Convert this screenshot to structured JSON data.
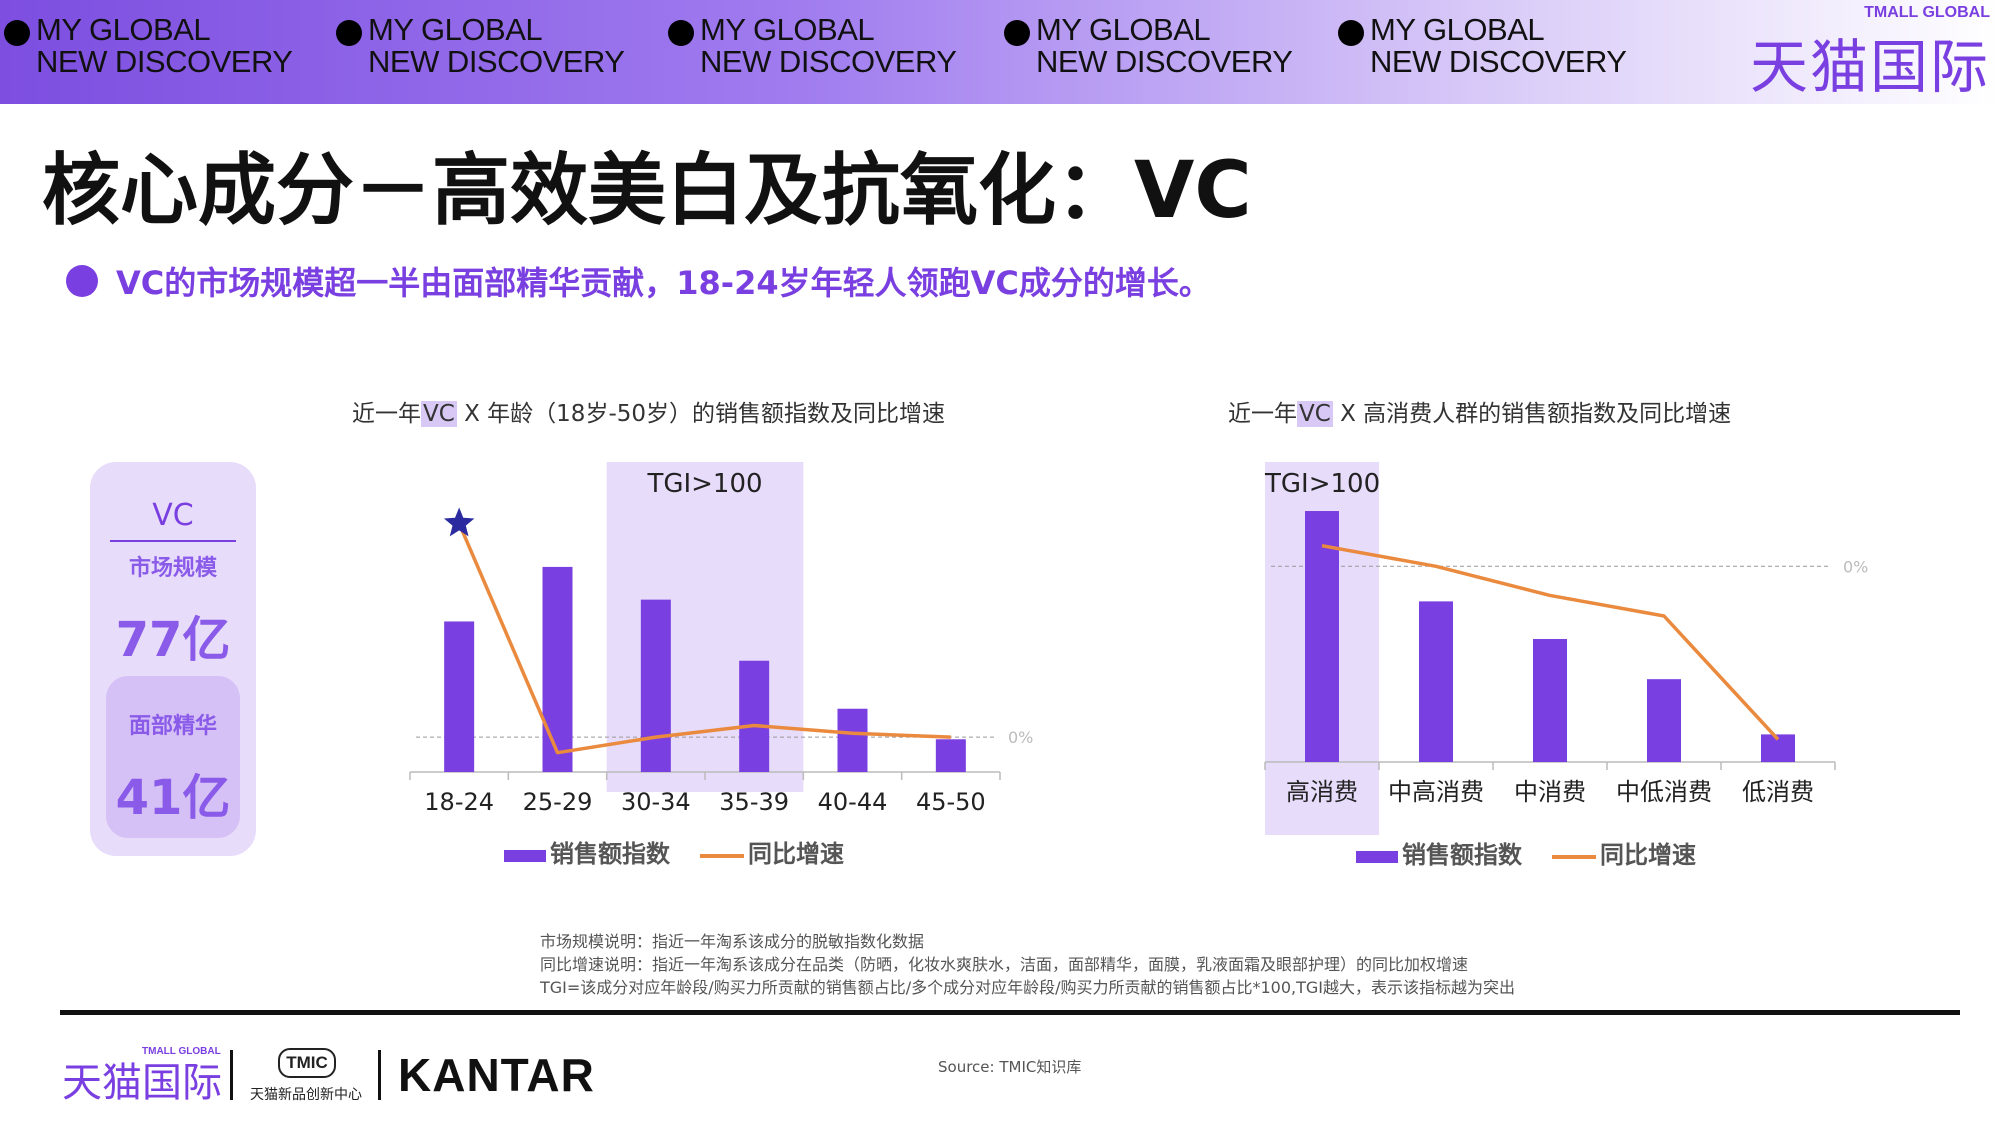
{
  "banner": {
    "items": [
      {
        "line1": "MY GLOBAL",
        "line2": "NEW DISCOVERY"
      },
      {
        "line1": "MY GLOBAL",
        "line2": "NEW DISCOVERY"
      },
      {
        "line1": "MY GLOBAL",
        "line2": "NEW DISCOVERY"
      },
      {
        "line1": "MY GLOBAL",
        "line2": "NEW DISCOVERY"
      },
      {
        "line1": "MY GLOBAL",
        "line2": "NEW DISCOVERY"
      }
    ],
    "brand_small": "TMALL GLOBAL",
    "brand_big": "天猫国际"
  },
  "page_title": "核心成分－高效美白及抗氧化：VC",
  "subtitle": "VC的市场规模超一半由面部精华贡献，18-24岁年轻人领跑VC成分的增长。",
  "card": {
    "title": "VC",
    "label1": "市场规模",
    "value1": "77亿",
    "label2": "面部精华",
    "value2": "41亿"
  },
  "chart1_title": {
    "pre": "近一年",
    "hl": "VC",
    "post": " X 年龄（18岁-50岁）的销售额指数及同比增速"
  },
  "chart2_title": {
    "pre": "近一年",
    "hl": "VC",
    "post": " X 高消费人群的销售额指数及同比增速"
  },
  "chart_data": [
    {
      "type": "bar",
      "categories": [
        "18-24",
        "25-29",
        "30-34",
        "35-39",
        "40-44",
        "45-50"
      ],
      "series": [
        {
          "name": "销售额指数",
          "values": [
            69,
            94,
            79,
            51,
            29,
            15
          ]
        },
        {
          "name": "同比增速",
          "values": [
            110,
            -8,
            0,
            6,
            2,
            0
          ]
        }
      ],
      "bar_ylim": [
        0,
        110
      ],
      "line_ylim": [
        -20,
        120
      ],
      "zero_label": "0%",
      "highlight": {
        "label": "TGI>100",
        "categories": [
          "30-34",
          "35-39"
        ]
      },
      "star_category": "18-24",
      "legend": [
        "销售额指数",
        "同比增速"
      ],
      "bar_color": "#7a3fe0",
      "line_color": "#ea8a3e",
      "highlight_color": "#e8dcfb"
    },
    {
      "type": "bar",
      "categories": [
        "高消费",
        "中高消费",
        "中消费",
        "中低消费",
        "低消费"
      ],
      "series": [
        {
          "name": "销售额指数",
          "values": [
            100,
            64,
            49,
            33,
            11
          ]
        },
        {
          "name": "同比增速",
          "values": [
            12,
            0,
            -17,
            -29,
            -101
          ]
        }
      ],
      "bar_ylim": [
        0,
        102
      ],
      "line_ylim": [
        -106,
        20
      ],
      "zero_label": "0%",
      "highlight": {
        "label": "TGI>100",
        "categories": [
          "高消费"
        ]
      },
      "legend": [
        "销售额指数",
        "同比增速"
      ],
      "bar_color": "#7a3fe0",
      "line_color": "#ea8a3e",
      "highlight_color": "#e8dcfb"
    }
  ],
  "notes": [
    "市场规模说明：指近一年淘系该成分的脱敏指数化数据",
    "同比增速说明：指近一年淘系该成分在品类（防晒，化妆水爽肤水，洁面，面部精华，面膜，乳液面霜及眼部护理）的同比加权增速",
    "TGI=该成分对应年龄段/购买力所贡献的销售额占比/多个成分对应年龄段/购买力所贡献的销售额占比*100,TGI越大，表示该指标越为突出"
  ],
  "footer": {
    "brand": "天猫国际",
    "brand_small": "TMALL GLOBAL",
    "tmic": "TMIC",
    "tmic_sub": "天猫新品创新中心",
    "kantar": "KANTAR",
    "source": "Source: TMIC知识库"
  }
}
